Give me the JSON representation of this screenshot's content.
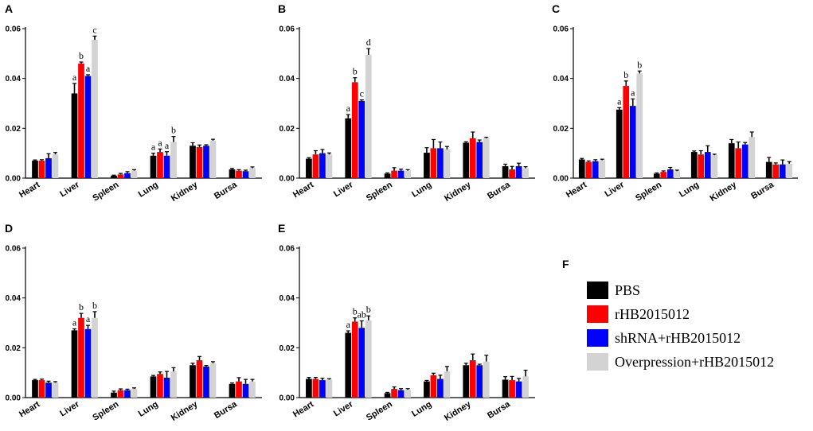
{
  "chart_data": [
    {
      "type": "bar",
      "panel": "A",
      "categories": [
        "Heart",
        "Liver",
        "Spleen",
        "Lung",
        "Kidney",
        "Bursa"
      ],
      "ylim": [
        0,
        0.06
      ],
      "yticks": [
        "0.00",
        "0.02",
        "0.04",
        "0.06"
      ],
      "series": [
        {
          "name": "PBS",
          "values": [
            0.007,
            0.034,
            0.001,
            0.009,
            0.013,
            0.0035
          ],
          "errors": [
            0.0003,
            0.004,
            0.0002,
            0.001,
            0.0012,
            0.0004
          ]
        },
        {
          "name": "rHB2015012",
          "values": [
            0.007,
            0.046,
            0.0015,
            0.0105,
            0.0125,
            0.003
          ],
          "errors": [
            0.0004,
            0.0006,
            0.0004,
            0.0012,
            0.0008,
            0.0004
          ]
        },
        {
          "name": "shRNA+rHB2015012",
          "values": [
            0.008,
            0.041,
            0.002,
            0.009,
            0.013,
            0.0028
          ],
          "errors": [
            0.0018,
            0.0005,
            0.0006,
            0.0016,
            0.0004,
            0.0004
          ]
        },
        {
          "name": "Overpression+rHB2015012",
          "values": [
            0.0095,
            0.0555,
            0.003,
            0.0145,
            0.015,
            0.004
          ],
          "errors": [
            0.0008,
            0.0015,
            0.0004,
            0.0022,
            0.0006,
            0.0005
          ]
        }
      ],
      "annotations": [
        {
          "category": "Liver",
          "series": 0,
          "text": "a"
        },
        {
          "category": "Liver",
          "series": 1,
          "text": "b"
        },
        {
          "category": "Liver",
          "series": 2,
          "text": "a"
        },
        {
          "category": "Liver",
          "series": 3,
          "text": "c"
        },
        {
          "category": "Lung",
          "series": 0,
          "text": "a"
        },
        {
          "category": "Lung",
          "series": 1,
          "text": "a"
        },
        {
          "category": "Lung",
          "series": 2,
          "text": "a"
        },
        {
          "category": "Lung",
          "series": 3,
          "text": "b"
        }
      ]
    },
    {
      "type": "bar",
      "panel": "B",
      "categories": [
        "Heart",
        "Liver",
        "Spleen",
        "Lung",
        "Kidney",
        "Bursa"
      ],
      "ylim": [
        0,
        0.06
      ],
      "yticks": [
        "0.00",
        "0.02",
        "0.04",
        "0.06"
      ],
      "series": [
        {
          "name": "PBS",
          "values": [
            0.0078,
            0.024,
            0.0018,
            0.0102,
            0.0142,
            0.0048
          ],
          "errors": [
            0.0004,
            0.0015,
            0.0003,
            0.002,
            0.0004,
            0.0008
          ]
        },
        {
          "name": "rHB2015012",
          "values": [
            0.0095,
            0.0385,
            0.003,
            0.012,
            0.016,
            0.0035
          ],
          "errors": [
            0.0015,
            0.0018,
            0.0012,
            0.0035,
            0.0025,
            0.0012
          ]
        },
        {
          "name": "shRNA+rHB2015012",
          "values": [
            0.01,
            0.031,
            0.003,
            0.012,
            0.0145,
            0.0048
          ],
          "errors": [
            0.0015,
            0.0004,
            0.0006,
            0.0025,
            0.0008,
            0.0012
          ]
        },
        {
          "name": "Overpression+rHB2015012",
          "values": [
            0.0095,
            0.0495,
            0.003,
            0.0115,
            0.016,
            0.004
          ],
          "errors": [
            0.0006,
            0.0025,
            0.0004,
            0.0012,
            0.0004,
            0.0006
          ]
        }
      ],
      "annotations": [
        {
          "category": "Liver",
          "series": 0,
          "text": "a"
        },
        {
          "category": "Liver",
          "series": 1,
          "text": "b"
        },
        {
          "category": "Liver",
          "series": 2,
          "text": "c"
        },
        {
          "category": "Liver",
          "series": 3,
          "text": "d"
        }
      ]
    },
    {
      "type": "bar",
      "panel": "C",
      "categories": [
        "Heart",
        "Liver",
        "Spleen",
        "Lung",
        "Kidney",
        "Bursa"
      ],
      "ylim": [
        0,
        0.06
      ],
      "yticks": [
        "0.00",
        "0.02",
        "0.04",
        "0.06"
      ],
      "series": [
        {
          "name": "PBS",
          "values": [
            0.0075,
            0.0275,
            0.0018,
            0.0105,
            0.014,
            0.0065
          ],
          "errors": [
            0.0004,
            0.0008,
            0.0003,
            0.0004,
            0.0015,
            0.0018
          ]
        },
        {
          "name": "rHB2015012",
          "values": [
            0.0065,
            0.037,
            0.0025,
            0.0095,
            0.012,
            0.0055
          ],
          "errors": [
            0.0004,
            0.002,
            0.0004,
            0.0015,
            0.0025,
            0.0006
          ]
        },
        {
          "name": "shRNA+rHB2015012",
          "values": [
            0.0068,
            0.029,
            0.0035,
            0.0105,
            0.0135,
            0.0055
          ],
          "errors": [
            0.0006,
            0.0028,
            0.0008,
            0.0025,
            0.0008,
            0.0018
          ]
        },
        {
          "name": "Overpression+rHB2015012",
          "values": [
            0.0072,
            0.042,
            0.0028,
            0.0092,
            0.0165,
            0.0058
          ],
          "errors": [
            0.0004,
            0.001,
            0.0004,
            0.0004,
            0.002,
            0.0008
          ]
        }
      ],
      "annotations": [
        {
          "category": "Liver",
          "series": 0,
          "text": "a"
        },
        {
          "category": "Liver",
          "series": 1,
          "text": "b"
        },
        {
          "category": "Liver",
          "series": 2,
          "text": "a"
        },
        {
          "category": "Liver",
          "series": 3,
          "text": "b"
        }
      ]
    },
    {
      "type": "bar",
      "panel": "D",
      "categories": [
        "Heart",
        "Liver",
        "Spleen",
        "Lung",
        "Kidney",
        "Bursa"
      ],
      "ylim": [
        0,
        0.06
      ],
      "yticks": [
        "0.00",
        "0.02",
        "0.04",
        "0.06"
      ],
      "series": [
        {
          "name": "PBS",
          "values": [
            0.007,
            0.027,
            0.002,
            0.0085,
            0.013,
            0.0055
          ],
          "errors": [
            0.0003,
            0.0006,
            0.0006,
            0.0004,
            0.0008,
            0.0004
          ]
        },
        {
          "name": "rHB2015012",
          "values": [
            0.007,
            0.032,
            0.003,
            0.0095,
            0.015,
            0.0065
          ],
          "errors": [
            0.0004,
            0.0018,
            0.0005,
            0.0008,
            0.0015,
            0.0015
          ]
        },
        {
          "name": "shRNA+rHB2015012",
          "values": [
            0.006,
            0.0275,
            0.003,
            0.008,
            0.0125,
            0.0055
          ],
          "errors": [
            0.0006,
            0.0015,
            0.0004,
            0.0025,
            0.0004,
            0.0018
          ]
        },
        {
          "name": "Overpression+rHB2015012",
          "values": [
            0.006,
            0.032,
            0.0035,
            0.0105,
            0.0138,
            0.0065
          ],
          "errors": [
            0.0004,
            0.0025,
            0.0004,
            0.0015,
            0.0006,
            0.0008
          ]
        }
      ],
      "annotations": [
        {
          "category": "Liver",
          "series": 0,
          "text": "a"
        },
        {
          "category": "Liver",
          "series": 1,
          "text": "b"
        },
        {
          "category": "Liver",
          "series": 2,
          "text": "a"
        },
        {
          "category": "Liver",
          "series": 3,
          "text": "b"
        }
      ]
    },
    {
      "type": "bar",
      "panel": "E",
      "categories": [
        "Heart",
        "Liver",
        "Spleen",
        "Lung",
        "Kidney",
        "Bursa"
      ],
      "ylim": [
        0,
        0.06
      ],
      "yticks": [
        "0.00",
        "0.02",
        "0.04",
        "0.06"
      ],
      "series": [
        {
          "name": "PBS",
          "values": [
            0.0075,
            0.026,
            0.0018,
            0.0065,
            0.013,
            0.0072
          ],
          "errors": [
            0.0006,
            0.0008,
            0.0003,
            0.0004,
            0.0008,
            0.0012
          ]
        },
        {
          "name": "rHB2015012",
          "values": [
            0.0075,
            0.0305,
            0.0035,
            0.009,
            0.015,
            0.007
          ],
          "errors": [
            0.0006,
            0.0015,
            0.0008,
            0.0008,
            0.0025,
            0.0015
          ]
        },
        {
          "name": "shRNA+rHB2015012",
          "values": [
            0.007,
            0.028,
            0.003,
            0.0075,
            0.013,
            0.0065
          ],
          "errors": [
            0.0008,
            0.0028,
            0.0006,
            0.0015,
            0.0004,
            0.0012
          ]
        },
        {
          "name": "Overpression+rHB2015012",
          "values": [
            0.0072,
            0.031,
            0.0032,
            0.0105,
            0.0145,
            0.0085
          ],
          "errors": [
            0.0004,
            0.0018,
            0.0004,
            0.002,
            0.0025,
            0.0025
          ]
        }
      ],
      "annotations": [
        {
          "category": "Liver",
          "series": 0,
          "text": "a"
        },
        {
          "category": "Liver",
          "series": 1,
          "text": "b"
        },
        {
          "category": "Liver",
          "series": 2,
          "text": "ab"
        },
        {
          "category": "Liver",
          "series": 3,
          "text": "b"
        }
      ]
    }
  ],
  "legend": {
    "panel": "F",
    "items": [
      {
        "label": "PBS",
        "color": "#000000"
      },
      {
        "label": "rHB2015012",
        "color": "#ff0000"
      },
      {
        "label": "shRNA+rHB2015012",
        "color": "#0000ff"
      },
      {
        "label": "Overpression+rHB2015012",
        "color": "#d3d3d3"
      }
    ]
  },
  "colors": {
    "series": [
      "#000000",
      "#ff0000",
      "#0000ff",
      "#d3d3d3"
    ],
    "text": "#000000",
    "background": "#ffffff"
  }
}
